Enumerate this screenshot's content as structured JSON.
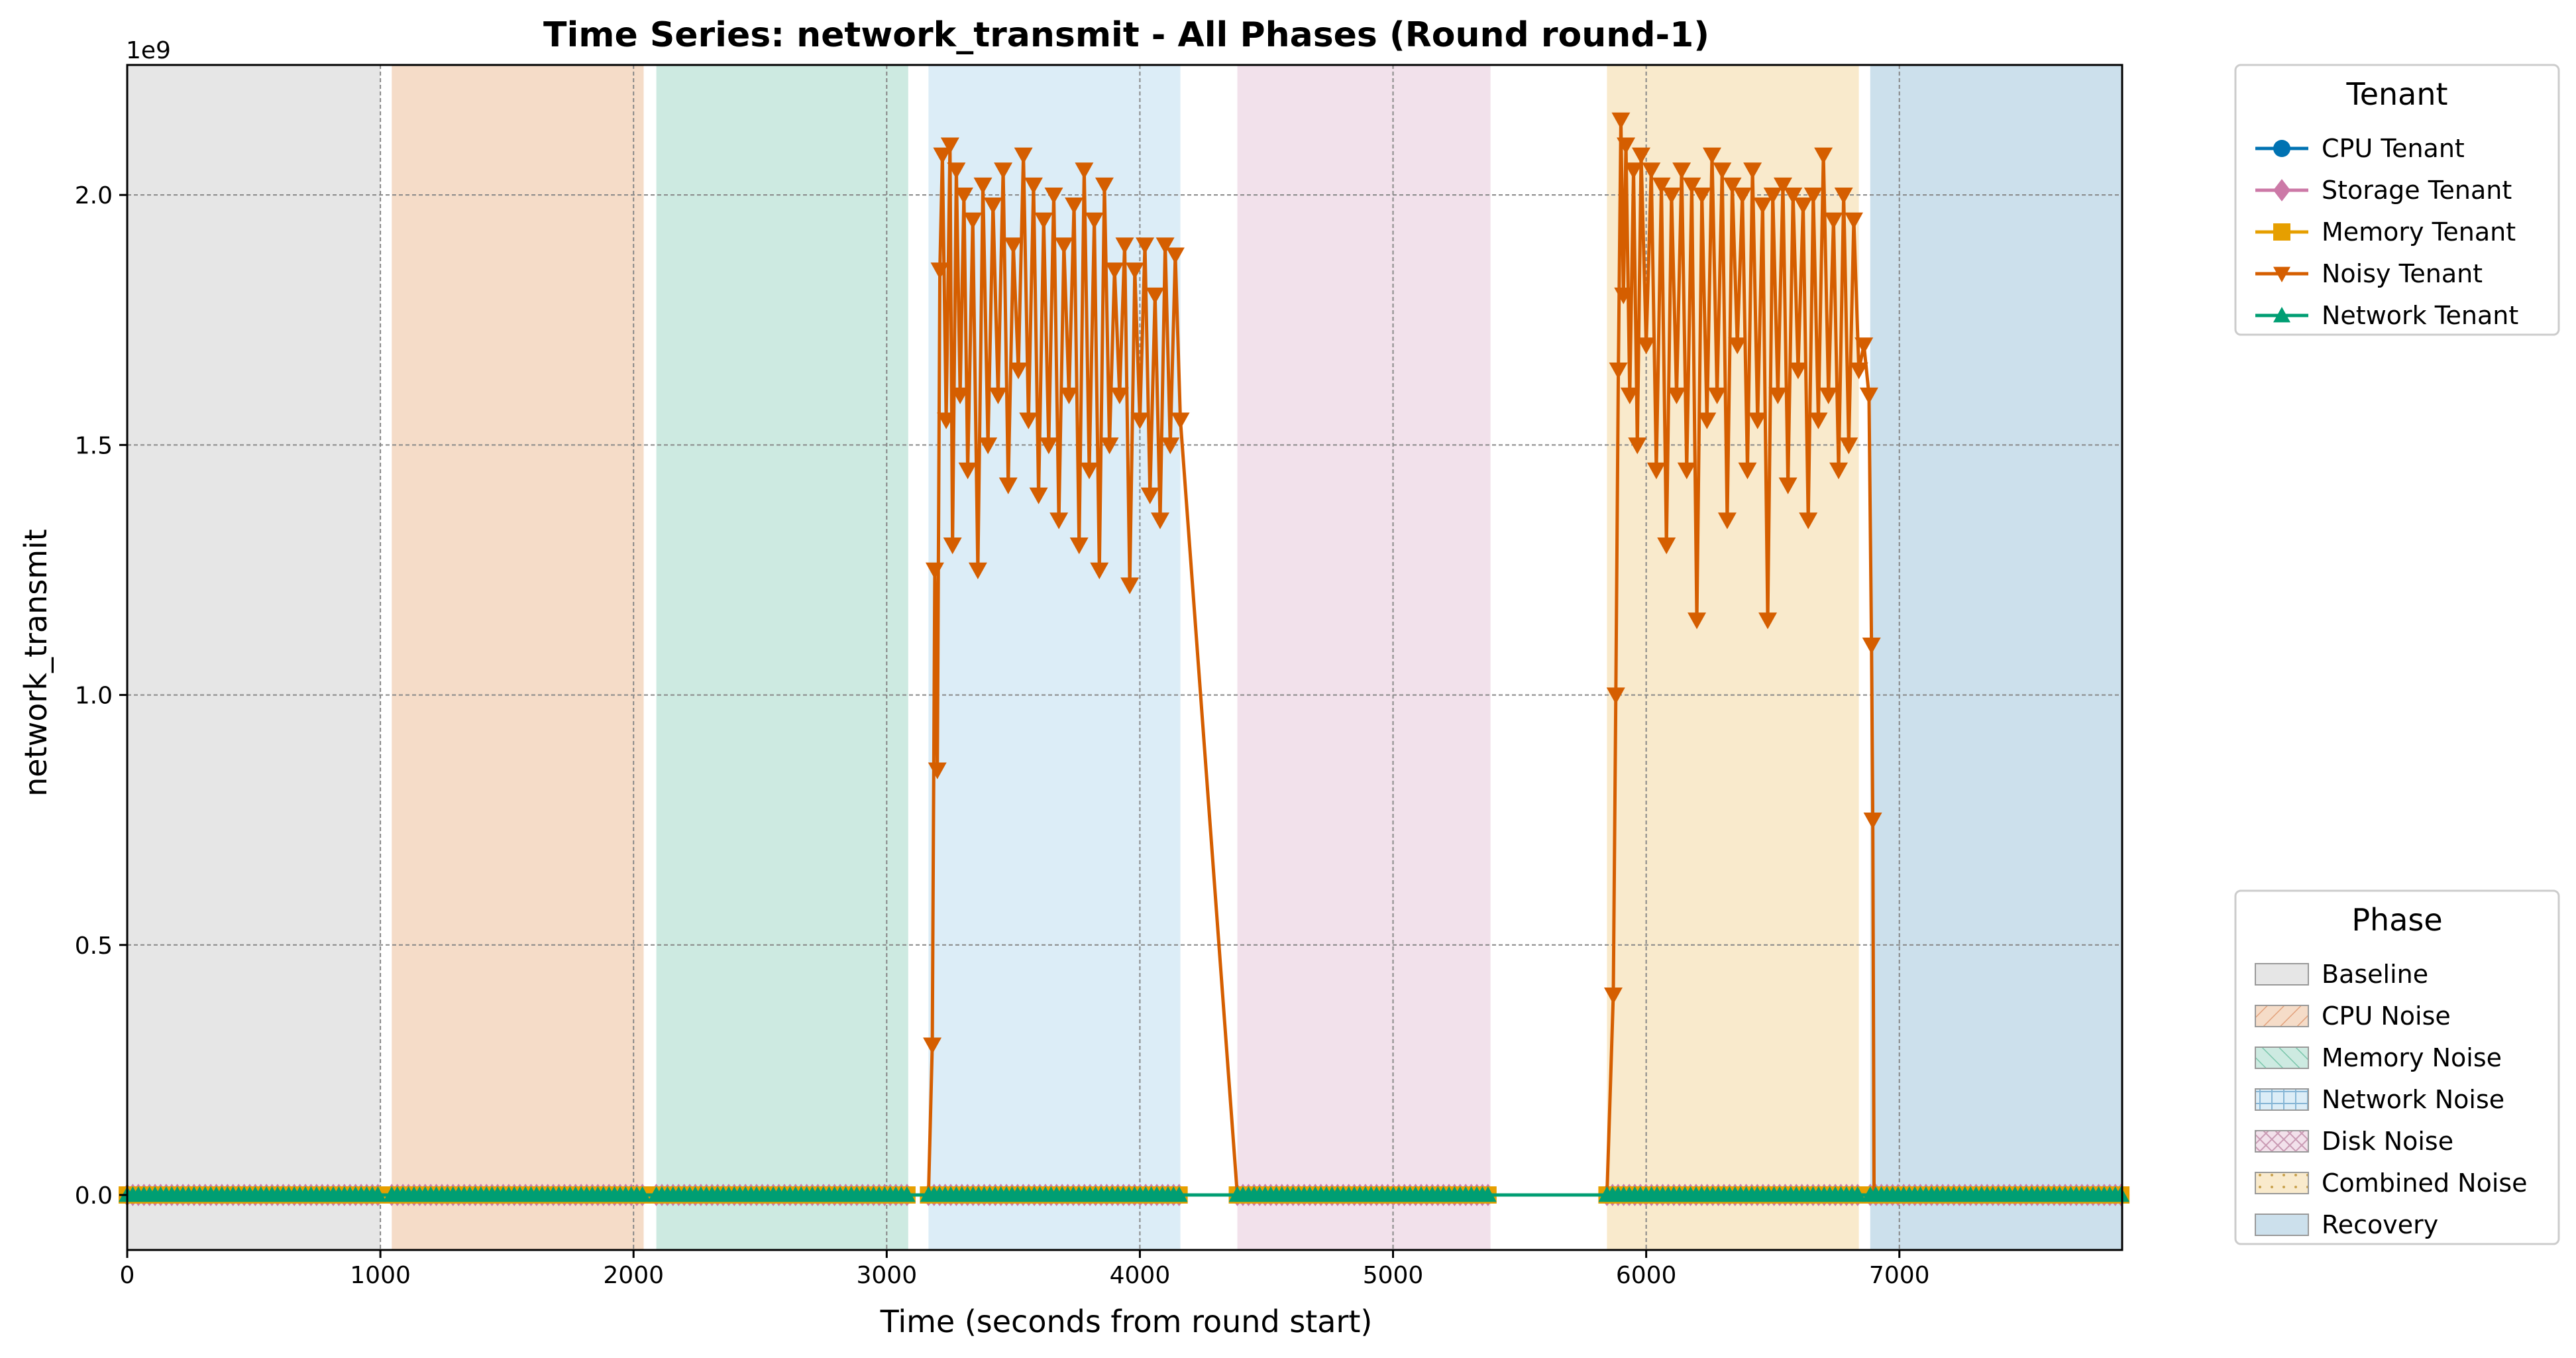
{
  "chart_data": {
    "type": "line",
    "title": "Time Series: network_transmit - All Phases (Round round-1)",
    "xlabel": "Time (seconds from round start)",
    "ylabel": "network_transmit",
    "y_offset_label": "1e9",
    "xlim": [
      0,
      7880
    ],
    "ylim": [
      -0.11,
      2.26
    ],
    "y_scale_note": "values in units of 1e9",
    "grid": true,
    "x_ticks": [
      "0",
      "1000",
      "2000",
      "3000",
      "4000",
      "5000",
      "6000",
      "7000"
    ],
    "x_tick_values": [
      0,
      1000,
      2000,
      3000,
      4000,
      5000,
      6000,
      7000
    ],
    "y_ticks": [
      "0.0",
      "0.5",
      "1.0",
      "1.5",
      "2.0"
    ],
    "y_tick_values": [
      0,
      0.5,
      1.0,
      1.5,
      2.0
    ],
    "phases": [
      {
        "name": "Baseline",
        "start": 0,
        "end": 1000,
        "color": "#e6e6e6"
      },
      {
        "name": "CPU Noise",
        "start": 1045,
        "end": 2040,
        "color": "#f5dcc8"
      },
      {
        "name": "Memory Noise",
        "start": 2090,
        "end": 3085,
        "color": "#cdeae1"
      },
      {
        "name": "Network Noise",
        "start": 3165,
        "end": 4160,
        "color": "#dcedf7"
      },
      {
        "name": "Disk Noise",
        "start": 4385,
        "end": 5385,
        "color": "#f2e1eb"
      },
      {
        "name": "Combined Noise",
        "start": 5845,
        "end": 6840,
        "color": "#f9eacc"
      },
      {
        "name": "Recovery",
        "start": 6885,
        "end": 7880,
        "color": "#cce0ec"
      }
    ],
    "series": [
      {
        "name": "CPU Tenant",
        "color": "#0072b2",
        "marker": "circle",
        "x": [
          0,
          7880
        ],
        "y": [
          0,
          0
        ]
      },
      {
        "name": "Storage Tenant",
        "color": "#cc79a7",
        "marker": "diamond",
        "x": [
          0,
          7880
        ],
        "y": [
          0,
          0
        ]
      },
      {
        "name": "Memory Tenant",
        "color": "#e69f00",
        "marker": "square",
        "x": [
          0,
          7880
        ],
        "y": [
          0,
          0
        ]
      },
      {
        "name": "Noisy Tenant",
        "color": "#d55e00",
        "marker": "triangle-down",
        "x": [
          3165,
          3180,
          3190,
          3200,
          3210,
          3220,
          3235,
          3250,
          3260,
          3275,
          3290,
          3305,
          3320,
          3340,
          3360,
          3380,
          3400,
          3420,
          3440,
          3460,
          3480,
          3500,
          3520,
          3540,
          3560,
          3580,
          3600,
          3620,
          3640,
          3660,
          3680,
          3700,
          3720,
          3740,
          3760,
          3780,
          3800,
          3820,
          3840,
          3860,
          3880,
          3900,
          3920,
          3940,
          3960,
          3980,
          4000,
          4020,
          4040,
          4060,
          4080,
          4100,
          4120,
          4140,
          4160,
          4385,
          5845,
          5870,
          5880,
          5890,
          5900,
          5910,
          5920,
          5935,
          5950,
          5965,
          5980,
          6000,
          6020,
          6040,
          6060,
          6080,
          6100,
          6120,
          6140,
          6160,
          6180,
          6200,
          6220,
          6240,
          6260,
          6280,
          6300,
          6320,
          6340,
          6360,
          6380,
          6400,
          6420,
          6440,
          6460,
          6480,
          6500,
          6520,
          6540,
          6560,
          6580,
          6600,
          6620,
          6640,
          6660,
          6680,
          6700,
          6720,
          6740,
          6760,
          6780,
          6800,
          6820,
          6840,
          6860,
          6880,
          6890,
          6895,
          6900,
          6905,
          6910,
          7880
        ],
        "y": [
          0,
          0.3,
          1.25,
          0.85,
          1.85,
          2.08,
          1.55,
          2.1,
          1.3,
          2.05,
          1.6,
          2.0,
          1.45,
          1.95,
          1.25,
          2.02,
          1.5,
          1.98,
          1.6,
          2.05,
          1.42,
          1.9,
          1.65,
          2.08,
          1.55,
          2.02,
          1.4,
          1.95,
          1.5,
          2.0,
          1.35,
          1.9,
          1.6,
          1.98,
          1.3,
          2.05,
          1.45,
          1.95,
          1.25,
          2.02,
          1.5,
          1.85,
          1.6,
          1.9,
          1.22,
          1.85,
          1.55,
          1.9,
          1.4,
          1.8,
          1.35,
          1.9,
          1.5,
          1.88,
          1.55,
          0,
          0,
          0.4,
          1.0,
          1.65,
          2.15,
          1.8,
          2.1,
          1.6,
          2.05,
          1.5,
          2.08,
          1.7,
          2.05,
          1.45,
          2.02,
          1.3,
          2.0,
          1.6,
          2.05,
          1.45,
          2.02,
          1.15,
          2.0,
          1.55,
          2.08,
          1.6,
          2.05,
          1.35,
          2.02,
          1.7,
          2.0,
          1.45,
          2.05,
          1.55,
          1.98,
          1.15,
          2.0,
          1.6,
          2.02,
          1.42,
          2.0,
          1.65,
          1.98,
          1.35,
          2.0,
          1.55,
          2.08,
          1.6,
          1.95,
          1.45,
          2.0,
          1.5,
          1.95,
          1.65,
          1.7,
          1.6,
          1.1,
          0.75,
          0,
          0,
          0,
          0
        ]
      },
      {
        "name": "Network Tenant",
        "color": "#009e73",
        "marker": "triangle-up",
        "x": [
          0,
          7880
        ],
        "y": [
          0,
          0
        ]
      }
    ],
    "legends": [
      {
        "title": "Tenant",
        "position": "top-right outside",
        "entries": [
          "CPU Tenant",
          "Storage Tenant",
          "Memory Tenant",
          "Noisy Tenant",
          "Network Tenant"
        ]
      },
      {
        "title": "Phase",
        "position": "bottom-right outside",
        "entries": [
          "Baseline",
          "CPU Noise",
          "Memory Noise",
          "Network Noise",
          "Disk Noise",
          "Combined Noise",
          "Recovery"
        ]
      }
    ]
  }
}
